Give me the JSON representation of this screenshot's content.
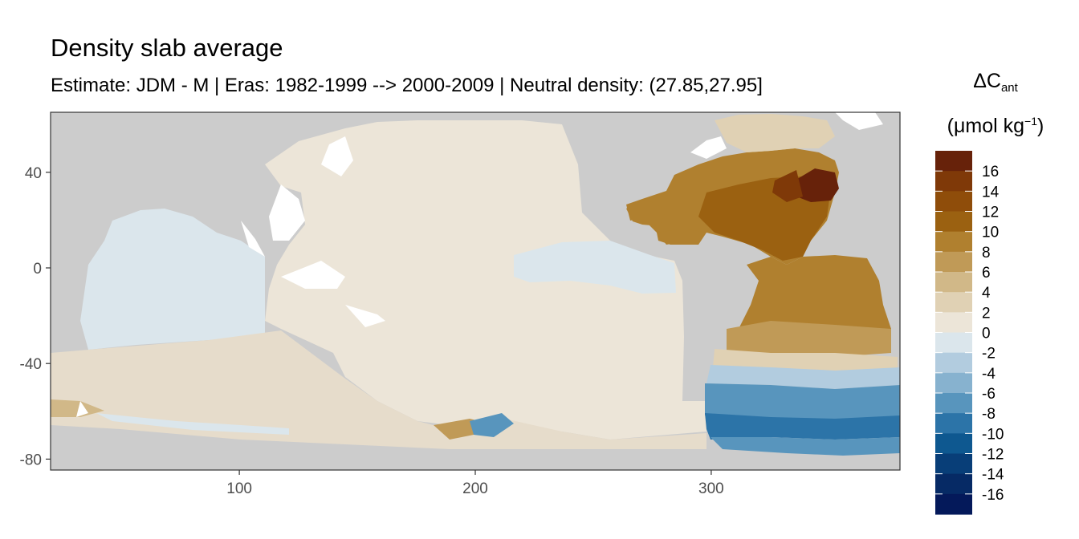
{
  "title": "Density slab average",
  "subtitle": "Estimate: JDM - M | Eras: 1982-1999 --> 2000-2009 | Neutral density: (27.85,27.95]",
  "legend": {
    "title_symbol": "ΔC",
    "title_sub": "ant",
    "unit_open": "(μmol kg",
    "unit_sup": "−1",
    "unit_close": ")",
    "bins": [
      {
        "color": "#67220a",
        "label": "16"
      },
      {
        "color": "#7f3908",
        "label": "14"
      },
      {
        "color": "#8f4d0a",
        "label": "12"
      },
      {
        "color": "#9b6111",
        "label": "10"
      },
      {
        "color": "#b0802f",
        "label": "8"
      },
      {
        "color": "#c09a57",
        "label": "6"
      },
      {
        "color": "#d1b888",
        "label": "4"
      },
      {
        "color": "#e0d1b4",
        "label": "2"
      },
      {
        "color": "#ece5d8",
        "label": "0"
      },
      {
        "color": "#dbe6ec",
        "label": "-2"
      },
      {
        "color": "#b2ccdf",
        "label": "-4"
      },
      {
        "color": "#87b2cf",
        "label": "-6"
      },
      {
        "color": "#5895bd",
        "label": "-8"
      },
      {
        "color": "#2c74a8",
        "label": "-10"
      },
      {
        "color": "#0e5890",
        "label": "-12"
      },
      {
        "color": "#083e78",
        "label": "-14"
      },
      {
        "color": "#062a65",
        "label": "-16"
      },
      {
        "color": "#04195a",
        "label": ""
      }
    ]
  },
  "map": {
    "land_color": "#cccccc",
    "x_ticks": [
      "100",
      "200",
      "300"
    ],
    "y_ticks": [
      "40",
      "0",
      "-40",
      "-80"
    ]
  }
}
